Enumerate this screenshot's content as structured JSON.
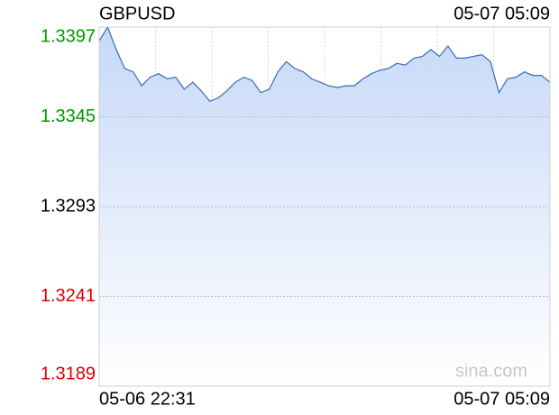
{
  "chart_data": {
    "type": "line",
    "title": "GBPUSD",
    "timestamp": "05-07 05:09",
    "watermark": "sina.com",
    "categories": [
      "05-06 22:31",
      null,
      null,
      null,
      null,
      null,
      null,
      null,
      null,
      null,
      null,
      null,
      null,
      null,
      null,
      null,
      null,
      null,
      null,
      null,
      null,
      null,
      null,
      null,
      null,
      null,
      null,
      null,
      null,
      null,
      null,
      null,
      null,
      null,
      null,
      null,
      null,
      null,
      null,
      null,
      null,
      null,
      null,
      null,
      null,
      null,
      null,
      null,
      null,
      null,
      null,
      null,
      null,
      "05-07 05:09"
    ],
    "series": [
      {
        "name": "GBPUSD",
        "color": "#3a6db5",
        "values": [
          1.3389,
          1.3397,
          1.3384,
          1.3373,
          1.3371,
          1.3363,
          1.3368,
          1.337,
          1.3367,
          1.3368,
          1.3361,
          1.3365,
          1.336,
          1.3354,
          1.3356,
          1.336,
          1.3365,
          1.3368,
          1.3366,
          1.3359,
          1.3361,
          1.3371,
          1.3377,
          1.3373,
          1.3371,
          1.3367,
          1.3365,
          1.3363,
          1.3362,
          1.3363,
          1.3363,
          1.3367,
          1.337,
          1.3372,
          1.3373,
          1.3376,
          1.3375,
          1.3379,
          1.338,
          1.3384,
          1.338,
          1.3386,
          1.3379,
          1.3379,
          1.338,
          1.3381,
          1.3377,
          1.3359,
          1.3367,
          1.3368,
          1.3371,
          1.3369,
          1.3369,
          1.3365
        ]
      }
    ],
    "ylim": [
      1.3189,
      1.3397
    ],
    "yticks": [
      1.3189,
      1.3241,
      1.3293,
      1.3345,
      1.3397
    ],
    "ytick_colors": [
      "#dd0000",
      "#dd0000",
      "#000000",
      "#009900",
      "#009900"
    ],
    "fill_color": "#c6d9f7",
    "grid": true
  }
}
